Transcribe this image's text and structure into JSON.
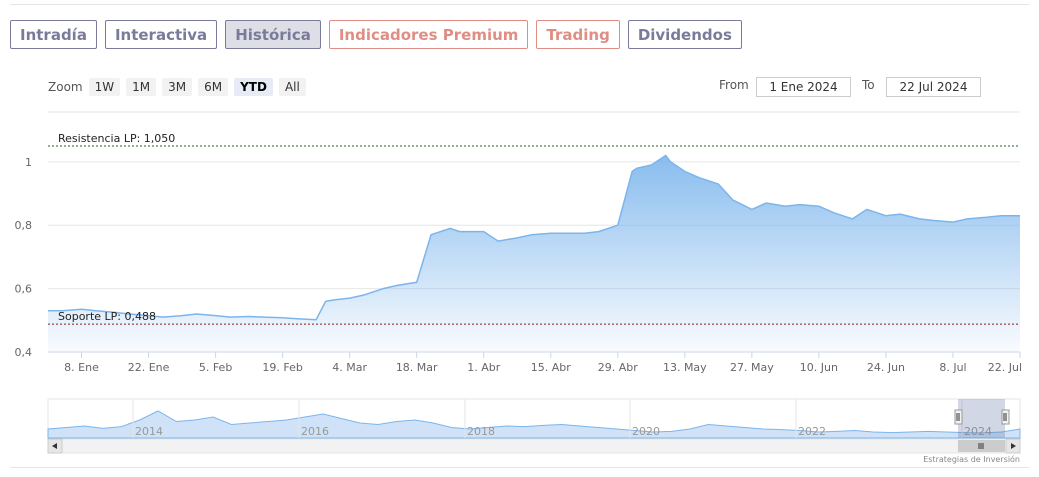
{
  "tabs": [
    {
      "label": "Intradía",
      "style": "purple"
    },
    {
      "label": "Interactiva",
      "style": "purple"
    },
    {
      "label": "Histórica",
      "style": "active"
    },
    {
      "label": "Indicadores Premium",
      "style": "salmon"
    },
    {
      "label": "Trading",
      "style": "salmon"
    },
    {
      "label": "Dividendos",
      "style": "purple"
    }
  ],
  "zoom": {
    "label": "Zoom",
    "buttons": [
      "1W",
      "1M",
      "3M",
      "6M",
      "YTD",
      "All"
    ],
    "selected": "YTD"
  },
  "range": {
    "from_label": "From",
    "from_value": "1 Ene 2024",
    "to_label": "To",
    "to_value": "22 Jul 2024"
  },
  "credit": "Estrategias de Inversión",
  "colors": {
    "line": "#7cb5ec",
    "purple_tab": "#7a7b9a",
    "salmon_tab": "#e08e84",
    "resistance": "#2e5e2e",
    "support": "#8b1a1a"
  },
  "chart_data": {
    "type": "area",
    "title": "",
    "xlabel": "",
    "ylabel": "",
    "ylim": [
      0.4,
      1.05
    ],
    "y_ticks": [
      "0,4",
      "0,6",
      "0,8",
      "1"
    ],
    "y_tick_values": [
      0.4,
      0.6,
      0.8,
      1.0
    ],
    "x_ticks": [
      "8. Ene",
      "22. Ene",
      "5. Feb",
      "19. Feb",
      "4. Mar",
      "18. Mar",
      "1. Abr",
      "15. Abr",
      "29. Abr",
      "13. May",
      "27. May",
      "10. Jun",
      "24. Jun",
      "8. Jul",
      "22. Jul"
    ],
    "x_tick_dates": [
      "2024-01-08",
      "2024-01-22",
      "2024-02-05",
      "2024-02-19",
      "2024-03-04",
      "2024-03-18",
      "2024-04-01",
      "2024-04-15",
      "2024-04-29",
      "2024-05-13",
      "2024-05-27",
      "2024-06-10",
      "2024-06-24",
      "2024-07-08",
      "2024-07-22"
    ],
    "x_range": [
      "2024-01-01",
      "2024-07-22"
    ],
    "grid": true,
    "annotations": [
      {
        "label": "Resistencia LP: 1,050",
        "value": 1.05
      },
      {
        "label": "Soporte LP: 0,488",
        "value": 0.488
      }
    ],
    "series": [
      {
        "x": [
          "2024-01-01",
          "2024-01-04",
          "2024-01-08",
          "2024-01-11",
          "2024-01-15",
          "2024-01-18",
          "2024-01-22",
          "2024-01-25",
          "2024-01-29",
          "2024-02-01",
          "2024-02-05",
          "2024-02-08",
          "2024-02-12",
          "2024-02-15",
          "2024-02-19",
          "2024-02-22",
          "2024-02-26",
          "2024-02-28",
          "2024-03-01",
          "2024-03-04",
          "2024-03-07",
          "2024-03-11",
          "2024-03-14",
          "2024-03-18",
          "2024-03-21",
          "2024-03-25",
          "2024-03-27",
          "2024-04-01",
          "2024-04-04",
          "2024-04-08",
          "2024-04-11",
          "2024-04-15",
          "2024-04-18",
          "2024-04-22",
          "2024-04-25",
          "2024-04-29",
          "2024-05-02",
          "2024-05-03",
          "2024-05-06",
          "2024-05-09",
          "2024-05-10",
          "2024-05-13",
          "2024-05-16",
          "2024-05-20",
          "2024-05-23",
          "2024-05-27",
          "2024-05-30",
          "2024-06-03",
          "2024-06-06",
          "2024-06-10",
          "2024-06-13",
          "2024-06-17",
          "2024-06-20",
          "2024-06-24",
          "2024-06-27",
          "2024-07-01",
          "2024-07-04",
          "2024-07-08",
          "2024-07-11",
          "2024-07-15",
          "2024-07-18",
          "2024-07-22"
        ],
        "y": [
          0.53,
          0.53,
          0.535,
          0.53,
          0.525,
          0.52,
          0.515,
          0.51,
          0.515,
          0.52,
          0.515,
          0.51,
          0.512,
          0.51,
          0.508,
          0.505,
          0.502,
          0.56,
          0.565,
          0.57,
          0.58,
          0.6,
          0.61,
          0.62,
          0.77,
          0.79,
          0.78,
          0.78,
          0.75,
          0.76,
          0.77,
          0.775,
          0.775,
          0.775,
          0.78,
          0.8,
          0.97,
          0.98,
          0.99,
          1.02,
          1.0,
          0.97,
          0.95,
          0.93,
          0.88,
          0.85,
          0.87,
          0.86,
          0.865,
          0.86,
          0.84,
          0.82,
          0.85,
          0.83,
          0.835,
          0.82,
          0.815,
          0.81,
          0.82,
          0.825,
          0.83,
          0.83
        ]
      }
    ],
    "navigator": {
      "x_ticks": [
        "2014",
        "2016",
        "2018",
        "2020",
        "2022",
        "2024"
      ]
    }
  }
}
